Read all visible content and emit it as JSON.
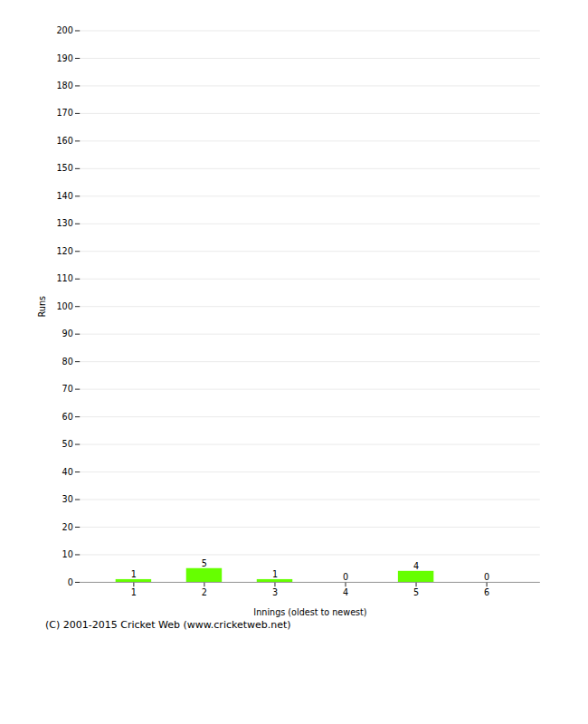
{
  "chart_data": {
    "type": "bar",
    "categories": [
      1,
      2,
      3,
      4,
      5,
      6
    ],
    "values": [
      1,
      5,
      1,
      0,
      4,
      0
    ],
    "color": "#66ff00",
    "xlabel": "Innings (oldest to newest)",
    "ylabel": "Runs",
    "caption": "(C) 2001-2015 Cricket Web (www.cricketweb.net)",
    "ylim": [
      0,
      200
    ],
    "yticks": [
      0,
      10,
      20,
      30,
      40,
      50,
      60,
      70,
      80,
      90,
      100,
      110,
      120,
      130,
      140,
      150,
      160,
      170,
      180,
      190,
      200
    ],
    "grid": true,
    "data_labels": true
  }
}
